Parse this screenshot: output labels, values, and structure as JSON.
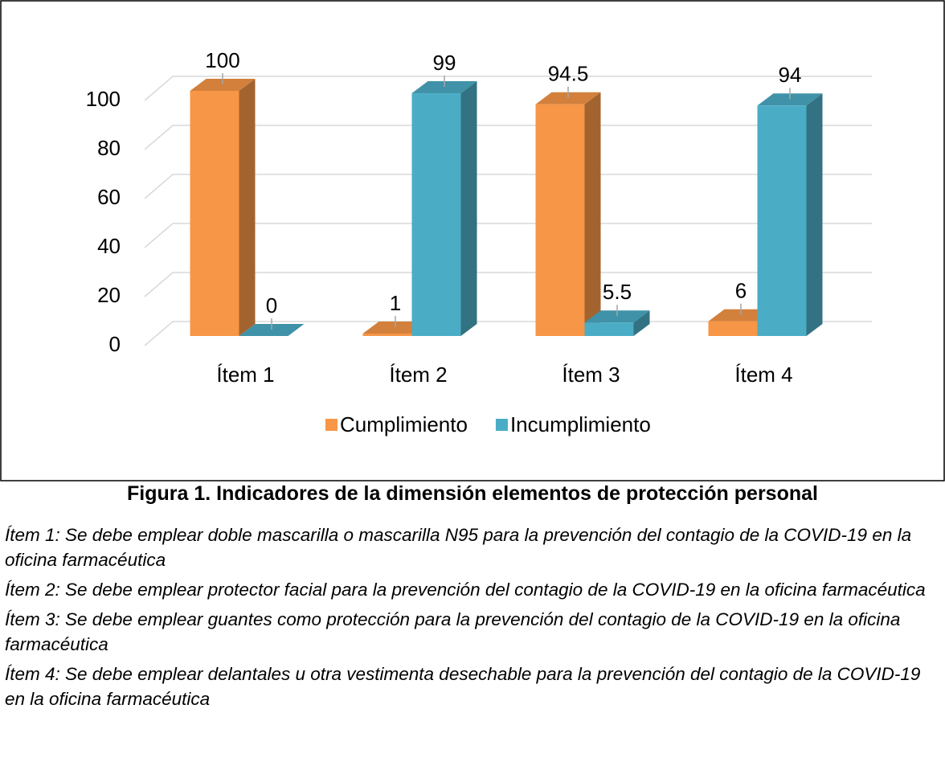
{
  "chart_data": {
    "type": "bar3d",
    "categories": [
      "Ítem 1",
      "Ítem 2",
      "Ítem 3",
      "Ítem 4"
    ],
    "series": [
      {
        "name": "Cumplimiento",
        "color": "#f79646",
        "values": [
          100,
          1,
          94.5,
          6
        ]
      },
      {
        "name": "Incumplimiento",
        "color": "#4bacc6",
        "values": [
          0,
          99,
          5.5,
          94
        ]
      }
    ],
    "ylim": [
      0,
      100
    ],
    "yticks": [
      0,
      20,
      40,
      60,
      80,
      100
    ],
    "grid": true,
    "legend": "bottom"
  },
  "figure_caption": "Figura 1. Indicadores de la dimensión elementos de protección personal",
  "notes": [
    "Ítem 1: Se debe emplear doble mascarilla o mascarilla N95 para la prevención del contagio de la COVID-19 en la oficina farmacéutica",
    "Ítem 2: Se debe emplear protector facial para la prevención del contagio de la COVID-19 en la oficina farmacéutica",
    "Ítem 3: Se debe emplear guantes como protección para la prevención del contagio de la COVID-19 en la oficina farmacéutica",
    "Ítem 4: Se debe emplear delantales u otra vestimenta desechable para la prevención del contagio de la COVID-19 en la oficina farmacéutica"
  ]
}
